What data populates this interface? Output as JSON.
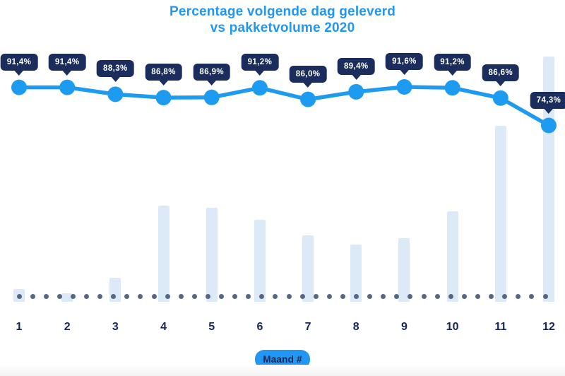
{
  "title": {
    "line1": "Percentage volgende dag geleverd",
    "line2": "vs pakketvolume 2020"
  },
  "x_axis": {
    "label": "Maand #",
    "categories": [
      "1",
      "2",
      "3",
      "4",
      "5",
      "6",
      "7",
      "8",
      "9",
      "10",
      "11",
      "12"
    ]
  },
  "chart_data": {
    "type": "line+bar",
    "title": "Percentage volgende dag geleverd vs pakketvolume 2020",
    "xlabel": "Maand #",
    "categories": [
      1,
      2,
      3,
      4,
      5,
      6,
      7,
      8,
      9,
      10,
      11,
      12
    ],
    "series": [
      {
        "name": "Percentage volgende dag geleverd",
        "type": "line",
        "unit": "%",
        "values": [
          91.4,
          91.4,
          88.3,
          86.8,
          86.9,
          91.2,
          86.0,
          89.4,
          91.6,
          91.2,
          86.6,
          74.3
        ],
        "point_labels": [
          "91,4%",
          "91,4%",
          "88,3%",
          "86,8%",
          "86,9%",
          "91,2%",
          "86,0%",
          "89,4%",
          "91,6%",
          "91,2%",
          "86,6%",
          "74,3%"
        ]
      },
      {
        "name": "Pakketvolume 2020",
        "type": "bar",
        "unit": "relative height, % of tallest bar (no value axis shown)",
        "values": [
          5.2,
          3.5,
          9.8,
          39.2,
          38.3,
          33.4,
          27.1,
          23.3,
          25.9,
          36.9,
          71.8,
          100
        ]
      }
    ],
    "legend": false,
    "grid": false,
    "y_axis_shown": false,
    "baseline_style": "dotted"
  },
  "colors": {
    "title": "#2196F3",
    "line": "#1D9BF0",
    "bar": "#DCEAF8",
    "badge_bg": "#1B2D5C",
    "badge_text": "#FFFFFF",
    "axis_label": "#14265B",
    "baseline_dots": "#566783",
    "xaxis_badge_bg": "#2196F3",
    "xaxis_badge_text": "#0F2350"
  }
}
